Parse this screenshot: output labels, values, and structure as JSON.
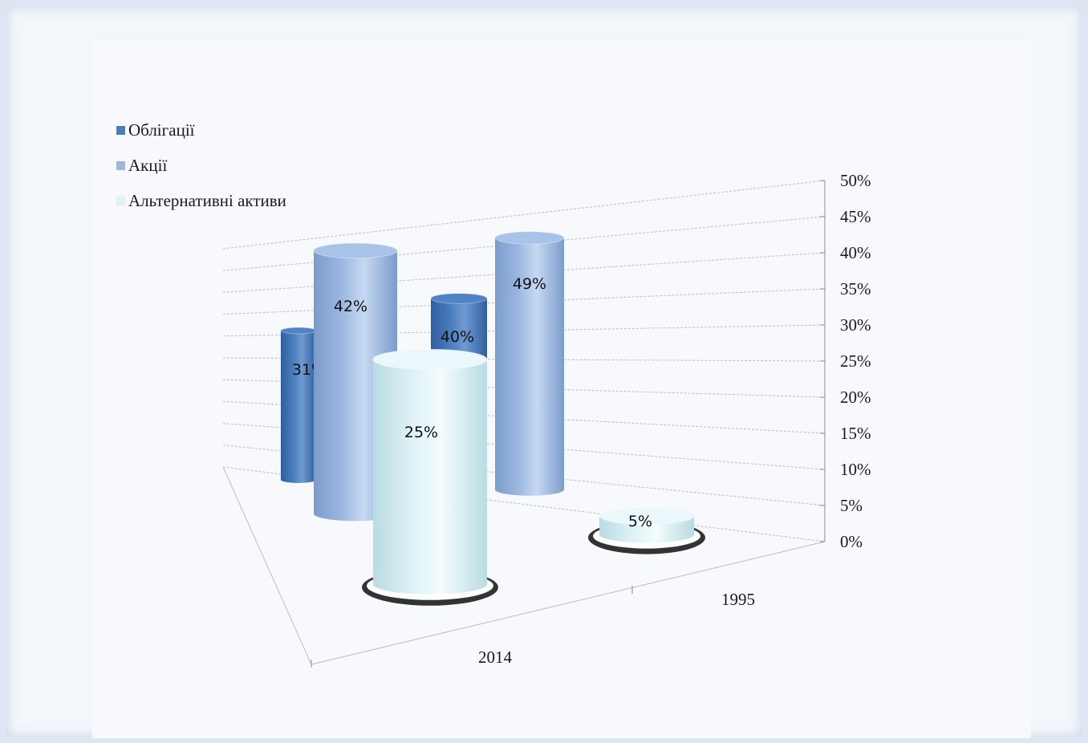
{
  "colors": {
    "bonds": "#4a7dbd",
    "stocks": "#9db8e0",
    "alternatives": "#dff2f6",
    "grid": "#bdbdbd"
  },
  "chart_data": {
    "type": "bar",
    "categories": [
      "2014",
      "1995"
    ],
    "series": [
      {
        "name": "Облігації",
        "values": [
          31,
          40
        ],
        "labels": [
          "31%",
          "40%"
        ]
      },
      {
        "name": "Акції",
        "values": [
          42,
          49
        ],
        "labels": [
          "42%",
          "49%"
        ]
      },
      {
        "name": "Альтернативні активи",
        "values": [
          25,
          5
        ],
        "labels": [
          "25%",
          "5%"
        ]
      }
    ],
    "y_ticks": [
      "0%",
      "5%",
      "10%",
      "15%",
      "20%",
      "25%",
      "30%",
      "35%",
      "40%",
      "45%",
      "50%"
    ],
    "ylim": [
      0,
      50
    ],
    "grid": true,
    "legend_position": "top-left",
    "style": "3d-cylinder"
  }
}
